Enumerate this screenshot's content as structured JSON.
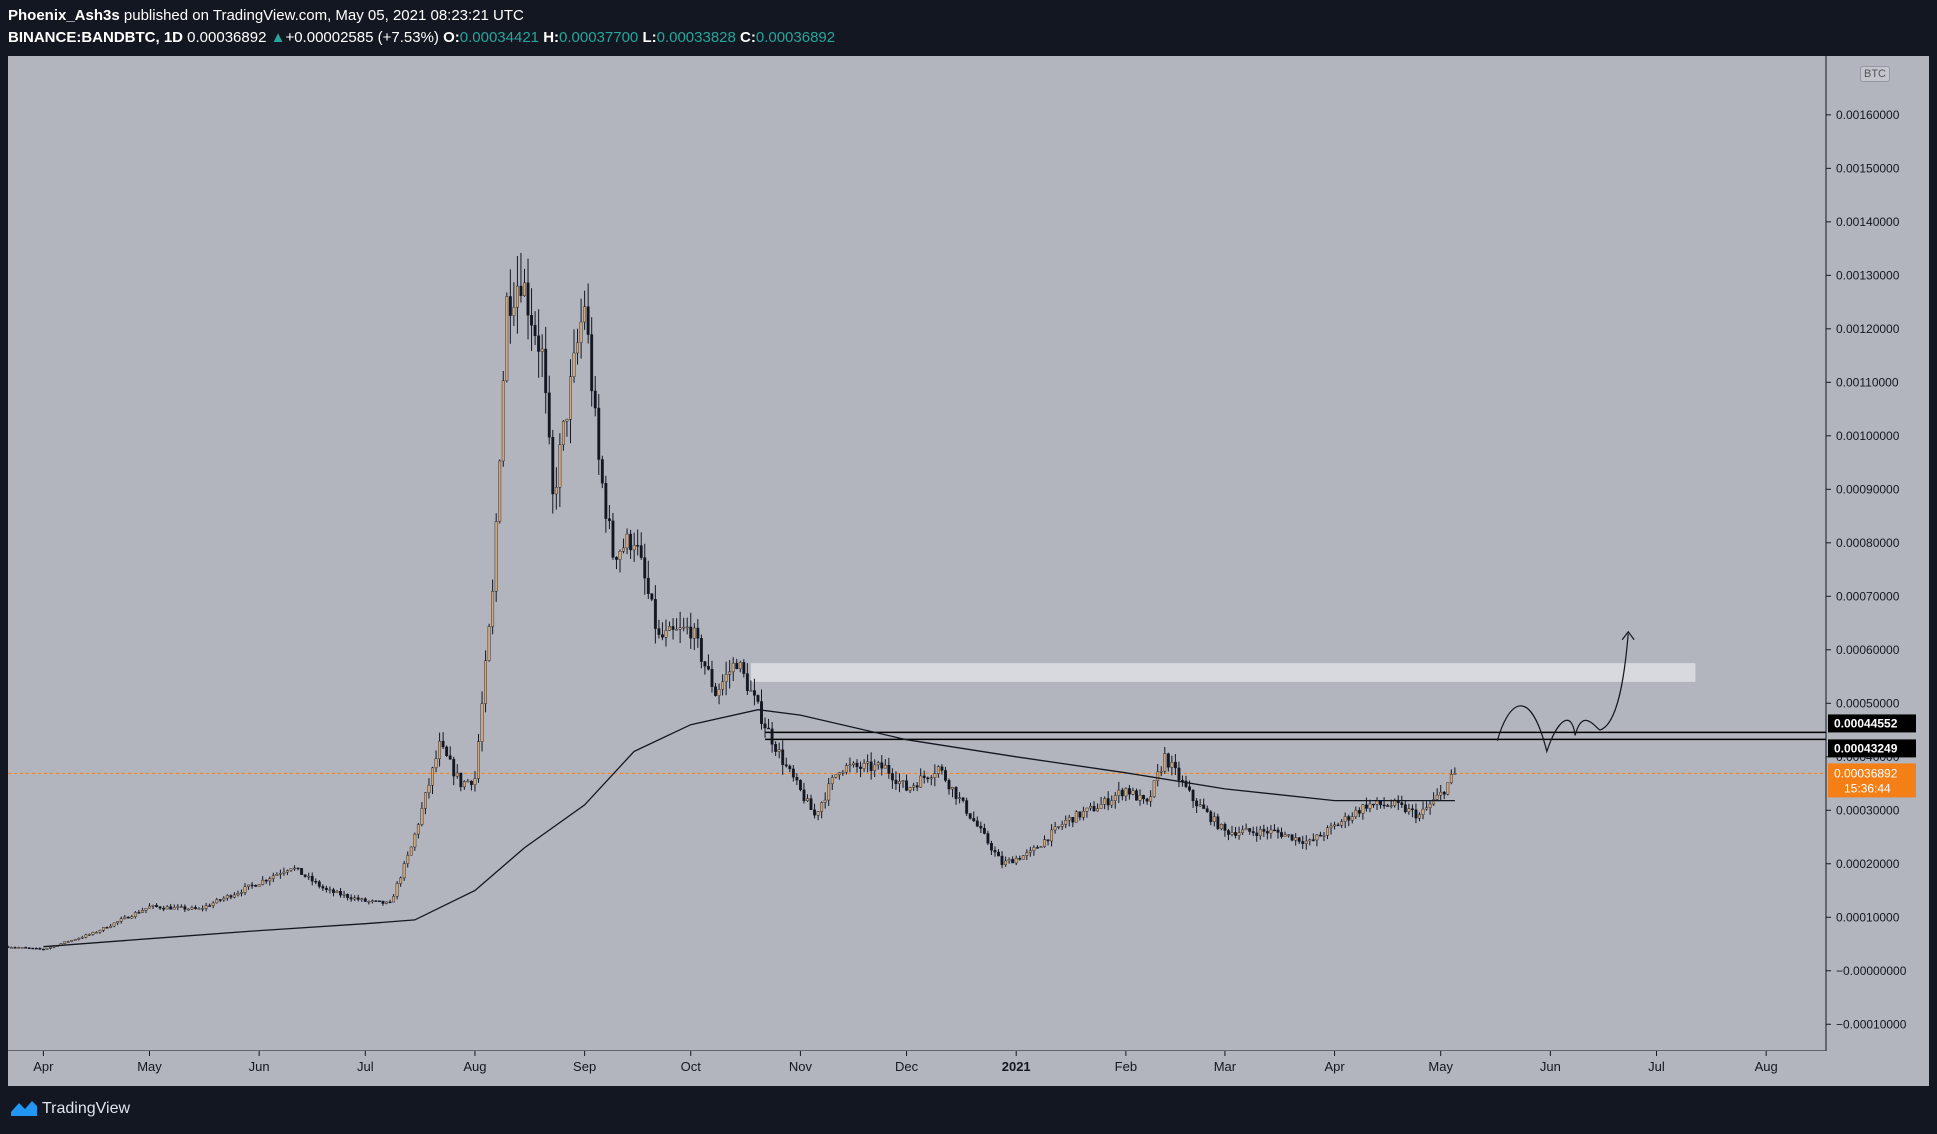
{
  "header": {
    "author": "Phoenix_Ash3s",
    "published_text": "published on TradingView.com, May 05, 2021 08:23:21 UTC",
    "symbol": "BINANCE:BANDBTC, 1D",
    "last_price": "0.00036892",
    "change_arrow": "▲",
    "change": "+0.00002585 (+7.53%)",
    "open_label": "O:",
    "open_value": "0.00034421",
    "high_label": "H:",
    "high_value": "0.00037700",
    "low_label": "L:",
    "low_value": "0.00033828",
    "close_label": "C:",
    "close_value": "0.00036892"
  },
  "footer": {
    "brand": "TradingView"
  },
  "chart_data": {
    "type": "candlestick",
    "currency": "BTC",
    "y_ticks": [
      "0.00160000",
      "0.00150000",
      "0.00140000",
      "0.00130000",
      "0.00120000",
      "0.00110000",
      "0.00100000",
      "0.00090000",
      "0.00080000",
      "0.00070000",
      "0.00060000",
      "0.00050000",
      "0.00040000",
      "0.00030000",
      "0.00020000",
      "0.00010000",
      "−0.00000000",
      "−0.00010000"
    ],
    "y_tick_values": [
      0.0016,
      0.0015,
      0.0014,
      0.0013,
      0.0012,
      0.0011,
      0.001,
      0.0009,
      0.0008,
      0.0007,
      0.0006,
      0.0005,
      0.0004,
      0.0003,
      0.0002,
      0.0001,
      0,
      -0.0001
    ],
    "ylim": [
      -0.00015,
      0.00171
    ],
    "x_ticks": [
      "Apr",
      "May",
      "Jun",
      "Jul",
      "Aug",
      "Sep",
      "Oct",
      "Nov",
      "Dec",
      "2021",
      "Feb",
      "Mar",
      "Apr",
      "May",
      "Jun",
      "Jul",
      "Aug"
    ],
    "x_tick_dates": [
      "2020-04-01",
      "2020-05-01",
      "2020-06-01",
      "2020-07-01",
      "2020-08-01",
      "2020-09-01",
      "2020-10-01",
      "2020-11-01",
      "2020-12-01",
      "2021-01-01",
      "2021-02-01",
      "2021-03-01",
      "2021-04-01",
      "2021-05-01",
      "2021-06-01",
      "2021-07-01",
      "2021-08-01"
    ],
    "x_tick_bold": [
      false,
      false,
      false,
      false,
      false,
      false,
      false,
      false,
      false,
      true,
      false,
      false,
      false,
      false,
      false,
      false,
      false
    ],
    "xlim": [
      "2020-03-22",
      "2021-08-10"
    ],
    "price_series": [
      [
        "2020-03-22",
        4.5e-05
      ],
      [
        "2020-04-01",
        4e-05
      ],
      [
        "2020-04-15",
        7e-05
      ],
      [
        "2020-05-01",
        0.00012
      ],
      [
        "2020-05-15",
        0.000115
      ],
      [
        "2020-06-01",
        0.000165
      ],
      [
        "2020-06-10",
        0.000195
      ],
      [
        "2020-06-20",
        0.00015
      ],
      [
        "2020-07-01",
        0.00013
      ],
      [
        "2020-07-08",
        0.000125
      ],
      [
        "2020-07-14",
        0.00023
      ],
      [
        "2020-07-22",
        0.00042
      ],
      [
        "2020-07-28",
        0.00035
      ],
      [
        "2020-08-01",
        0.00036
      ],
      [
        "2020-08-06",
        0.0007
      ],
      [
        "2020-08-10",
        0.00125
      ],
      [
        "2020-08-14",
        0.0013
      ],
      [
        "2020-08-20",
        0.00115
      ],
      [
        "2020-08-23",
        0.00088
      ],
      [
        "2020-08-27",
        0.00105
      ],
      [
        "2020-09-01",
        0.00125
      ],
      [
        "2020-09-05",
        0.00095
      ],
      [
        "2020-09-09",
        0.00078
      ],
      [
        "2020-09-15",
        0.00081
      ],
      [
        "2020-09-22",
        0.00062
      ],
      [
        "2020-10-01",
        0.00064
      ],
      [
        "2020-10-08",
        0.00052
      ],
      [
        "2020-10-14",
        0.00058
      ],
      [
        "2020-10-22",
        0.00046
      ],
      [
        "2020-10-28",
        0.00038
      ],
      [
        "2020-11-05",
        0.00029
      ],
      [
        "2020-11-12",
        0.00038
      ],
      [
        "2020-11-25",
        0.00038
      ],
      [
        "2020-12-01",
        0.00034
      ],
      [
        "2020-12-10",
        0.00038
      ],
      [
        "2020-12-20",
        0.00028
      ],
      [
        "2020-12-28",
        0.0002
      ],
      [
        "2021-01-05",
        0.00022
      ],
      [
        "2021-01-15",
        0.00028
      ],
      [
        "2021-01-25",
        0.00031
      ],
      [
        "2021-02-01",
        0.00034
      ],
      [
        "2021-02-07",
        0.00031
      ],
      [
        "2021-02-12",
        0.0004
      ],
      [
        "2021-02-20",
        0.00032
      ],
      [
        "2021-03-01",
        0.00026
      ],
      [
        "2021-03-15",
        0.00026
      ],
      [
        "2021-03-25",
        0.00024
      ],
      [
        "2021-04-01",
        0.00027
      ],
      [
        "2021-04-10",
        0.00031
      ],
      [
        "2021-04-18",
        0.00031
      ],
      [
        "2021-04-25",
        0.00029
      ],
      [
        "2021-05-01",
        0.00033
      ],
      [
        "2021-05-05",
        0.000369
      ]
    ],
    "sma_series": [
      [
        "2020-04-01",
        4.5e-05
      ],
      [
        "2020-05-01",
        6e-05
      ],
      [
        "2020-06-01",
        7.5e-05
      ],
      [
        "2020-07-01",
        8.8e-05
      ],
      [
        "2020-07-15",
        9.5e-05
      ],
      [
        "2020-08-01",
        0.00015
      ],
      [
        "2020-08-15",
        0.00023
      ],
      [
        "2020-09-01",
        0.00031
      ],
      [
        "2020-09-15",
        0.00041
      ],
      [
        "2020-10-01",
        0.00046
      ],
      [
        "2020-10-20",
        0.000488
      ],
      [
        "2020-11-01",
        0.000478
      ],
      [
        "2020-12-01",
        0.000432
      ],
      [
        "2021-01-01",
        0.0004
      ],
      [
        "2021-02-01",
        0.00037
      ],
      [
        "2021-03-01",
        0.00034
      ],
      [
        "2021-04-01",
        0.000318
      ],
      [
        "2021-05-05",
        0.000318
      ]
    ],
    "current_price_label": "0.00036892",
    "countdown_label": "15:36:44",
    "level_labels": [
      "0.00044552",
      "0.00043249"
    ],
    "level_values": [
      0.00044552,
      0.00043249
    ],
    "resistance_zone": [
      0.00054,
      0.000575
    ],
    "colors": {
      "chart_bg": "#b2b5be",
      "up_candle": "#d1a778",
      "down_candle": "#131722",
      "current_price": "#f57f17",
      "axis_text": "#131722"
    }
  }
}
